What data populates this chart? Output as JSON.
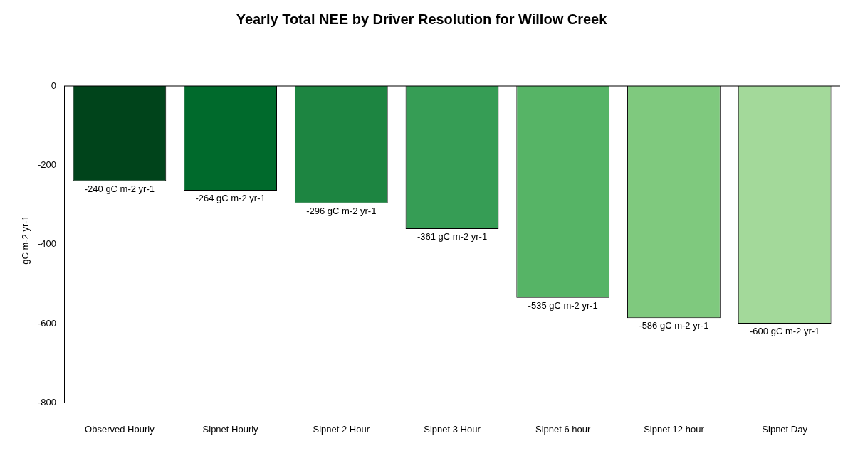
{
  "chart_data": {
    "type": "bar",
    "title": "Yearly Total NEE by Driver Resolution for Willow Creek",
    "ylabel": "gC m-2 yr-1",
    "categories": [
      "Observed Hourly",
      "Sipnet Hourly",
      "Sipnet 2 Hour",
      "Sipnet 3 Hour",
      "Sipnet 6 hour",
      "Sipnet 12 hour",
      "Sipnet Day"
    ],
    "values": [
      -240,
      -264,
      -296,
      -361,
      -535,
      -586,
      -600
    ],
    "colors": [
      "#00441b",
      "#006a2c",
      "#1d8541",
      "#369d55",
      "#56b466",
      "#7fc97e",
      "#a3d99a"
    ],
    "value_labels": [
      "-240 gC m-2 yr-1",
      "-264 gC m-2 yr-1",
      "-296 gC m-2 yr-1",
      "-361 gC m-2 yr-1",
      "-535 gC m-2 yr-1",
      "-586 gC m-2 yr-1",
      "-600 gC m-2 yr-1"
    ],
    "ylim": [
      -800,
      0
    ],
    "yticks": [
      -800,
      -600,
      -400,
      -200,
      0
    ],
    "grid": false,
    "legend": false,
    "ref_lines": [
      {
        "axis": "y",
        "value": 0,
        "color": "#000000"
      }
    ]
  }
}
